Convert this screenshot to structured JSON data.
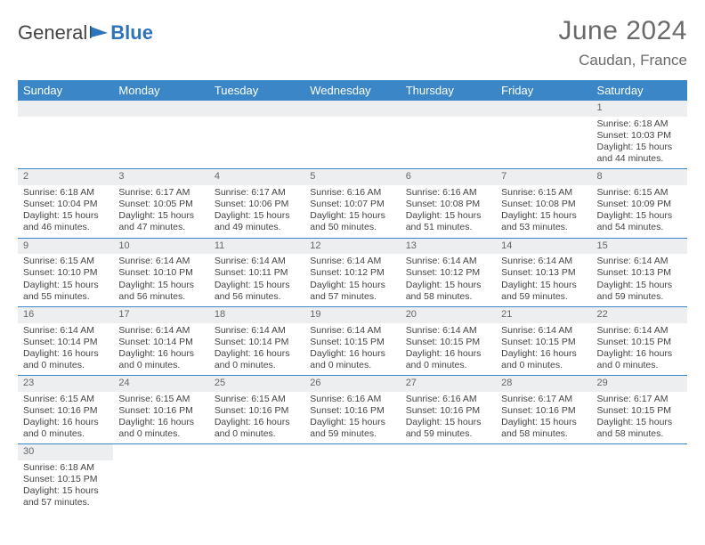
{
  "brand": {
    "general": "General",
    "blue": "Blue"
  },
  "title": "June 2024",
  "location": "Caudan, France",
  "header_bg": "#3b86c6",
  "days": [
    "Sunday",
    "Monday",
    "Tuesday",
    "Wednesday",
    "Thursday",
    "Friday",
    "Saturday"
  ],
  "weeks": [
    [
      null,
      null,
      null,
      null,
      null,
      null,
      {
        "n": "1",
        "sr": "Sunrise: 6:18 AM",
        "ss": "Sunset: 10:03 PM",
        "dl1": "Daylight: 15 hours",
        "dl2": "and 44 minutes."
      }
    ],
    [
      {
        "n": "2",
        "sr": "Sunrise: 6:18 AM",
        "ss": "Sunset: 10:04 PM",
        "dl1": "Daylight: 15 hours",
        "dl2": "and 46 minutes."
      },
      {
        "n": "3",
        "sr": "Sunrise: 6:17 AM",
        "ss": "Sunset: 10:05 PM",
        "dl1": "Daylight: 15 hours",
        "dl2": "and 47 minutes."
      },
      {
        "n": "4",
        "sr": "Sunrise: 6:17 AM",
        "ss": "Sunset: 10:06 PM",
        "dl1": "Daylight: 15 hours",
        "dl2": "and 49 minutes."
      },
      {
        "n": "5",
        "sr": "Sunrise: 6:16 AM",
        "ss": "Sunset: 10:07 PM",
        "dl1": "Daylight: 15 hours",
        "dl2": "and 50 minutes."
      },
      {
        "n": "6",
        "sr": "Sunrise: 6:16 AM",
        "ss": "Sunset: 10:08 PM",
        "dl1": "Daylight: 15 hours",
        "dl2": "and 51 minutes."
      },
      {
        "n": "7",
        "sr": "Sunrise: 6:15 AM",
        "ss": "Sunset: 10:08 PM",
        "dl1": "Daylight: 15 hours",
        "dl2": "and 53 minutes."
      },
      {
        "n": "8",
        "sr": "Sunrise: 6:15 AM",
        "ss": "Sunset: 10:09 PM",
        "dl1": "Daylight: 15 hours",
        "dl2": "and 54 minutes."
      }
    ],
    [
      {
        "n": "9",
        "sr": "Sunrise: 6:15 AM",
        "ss": "Sunset: 10:10 PM",
        "dl1": "Daylight: 15 hours",
        "dl2": "and 55 minutes."
      },
      {
        "n": "10",
        "sr": "Sunrise: 6:14 AM",
        "ss": "Sunset: 10:10 PM",
        "dl1": "Daylight: 15 hours",
        "dl2": "and 56 minutes."
      },
      {
        "n": "11",
        "sr": "Sunrise: 6:14 AM",
        "ss": "Sunset: 10:11 PM",
        "dl1": "Daylight: 15 hours",
        "dl2": "and 56 minutes."
      },
      {
        "n": "12",
        "sr": "Sunrise: 6:14 AM",
        "ss": "Sunset: 10:12 PM",
        "dl1": "Daylight: 15 hours",
        "dl2": "and 57 minutes."
      },
      {
        "n": "13",
        "sr": "Sunrise: 6:14 AM",
        "ss": "Sunset: 10:12 PM",
        "dl1": "Daylight: 15 hours",
        "dl2": "and 58 minutes."
      },
      {
        "n": "14",
        "sr": "Sunrise: 6:14 AM",
        "ss": "Sunset: 10:13 PM",
        "dl1": "Daylight: 15 hours",
        "dl2": "and 59 minutes."
      },
      {
        "n": "15",
        "sr": "Sunrise: 6:14 AM",
        "ss": "Sunset: 10:13 PM",
        "dl1": "Daylight: 15 hours",
        "dl2": "and 59 minutes."
      }
    ],
    [
      {
        "n": "16",
        "sr": "Sunrise: 6:14 AM",
        "ss": "Sunset: 10:14 PM",
        "dl1": "Daylight: 16 hours",
        "dl2": "and 0 minutes."
      },
      {
        "n": "17",
        "sr": "Sunrise: 6:14 AM",
        "ss": "Sunset: 10:14 PM",
        "dl1": "Daylight: 16 hours",
        "dl2": "and 0 minutes."
      },
      {
        "n": "18",
        "sr": "Sunrise: 6:14 AM",
        "ss": "Sunset: 10:14 PM",
        "dl1": "Daylight: 16 hours",
        "dl2": "and 0 minutes."
      },
      {
        "n": "19",
        "sr": "Sunrise: 6:14 AM",
        "ss": "Sunset: 10:15 PM",
        "dl1": "Daylight: 16 hours",
        "dl2": "and 0 minutes."
      },
      {
        "n": "20",
        "sr": "Sunrise: 6:14 AM",
        "ss": "Sunset: 10:15 PM",
        "dl1": "Daylight: 16 hours",
        "dl2": "and 0 minutes."
      },
      {
        "n": "21",
        "sr": "Sunrise: 6:14 AM",
        "ss": "Sunset: 10:15 PM",
        "dl1": "Daylight: 16 hours",
        "dl2": "and 0 minutes."
      },
      {
        "n": "22",
        "sr": "Sunrise: 6:14 AM",
        "ss": "Sunset: 10:15 PM",
        "dl1": "Daylight: 16 hours",
        "dl2": "and 0 minutes."
      }
    ],
    [
      {
        "n": "23",
        "sr": "Sunrise: 6:15 AM",
        "ss": "Sunset: 10:16 PM",
        "dl1": "Daylight: 16 hours",
        "dl2": "and 0 minutes."
      },
      {
        "n": "24",
        "sr": "Sunrise: 6:15 AM",
        "ss": "Sunset: 10:16 PM",
        "dl1": "Daylight: 16 hours",
        "dl2": "and 0 minutes."
      },
      {
        "n": "25",
        "sr": "Sunrise: 6:15 AM",
        "ss": "Sunset: 10:16 PM",
        "dl1": "Daylight: 16 hours",
        "dl2": "and 0 minutes."
      },
      {
        "n": "26",
        "sr": "Sunrise: 6:16 AM",
        "ss": "Sunset: 10:16 PM",
        "dl1": "Daylight: 15 hours",
        "dl2": "and 59 minutes."
      },
      {
        "n": "27",
        "sr": "Sunrise: 6:16 AM",
        "ss": "Sunset: 10:16 PM",
        "dl1": "Daylight: 15 hours",
        "dl2": "and 59 minutes."
      },
      {
        "n": "28",
        "sr": "Sunrise: 6:17 AM",
        "ss": "Sunset: 10:16 PM",
        "dl1": "Daylight: 15 hours",
        "dl2": "and 58 minutes."
      },
      {
        "n": "29",
        "sr": "Sunrise: 6:17 AM",
        "ss": "Sunset: 10:15 PM",
        "dl1": "Daylight: 15 hours",
        "dl2": "and 58 minutes."
      }
    ],
    [
      {
        "n": "30",
        "sr": "Sunrise: 6:18 AM",
        "ss": "Sunset: 10:15 PM",
        "dl1": "Daylight: 15 hours",
        "dl2": "and 57 minutes."
      },
      null,
      null,
      null,
      null,
      null,
      null
    ]
  ]
}
